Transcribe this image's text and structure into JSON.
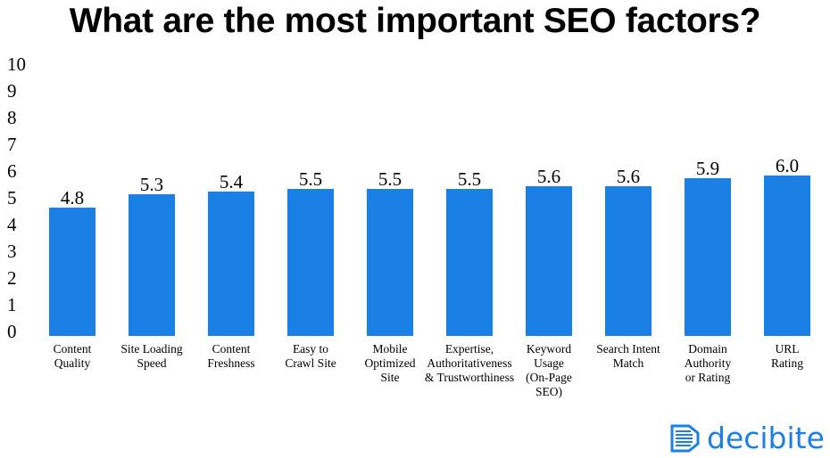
{
  "chart_data": {
    "type": "bar",
    "title": "What are the most important SEO factors?",
    "categories": [
      "Content Quality",
      "Site Loading Speed",
      "Content Freshness",
      "Easy to Crawl Site",
      "Mobile Optimized Site",
      "Expertise, Authoritativeness & Trustworthiness",
      "Keyword Usage (On-Page SEO)",
      "Search Intent Match",
      "Domain Authority or Rating",
      "URL Rating"
    ],
    "category_lines": [
      [
        "Content",
        "Quality"
      ],
      [
        "Site Loading",
        "Speed"
      ],
      [
        "Content",
        "Freshness"
      ],
      [
        "Easy to",
        "Crawl Site"
      ],
      [
        "Mobile",
        "Optimized",
        "Site"
      ],
      [
        "Expertise,",
        "Authoritativeness",
        "& Trustworthiness"
      ],
      [
        "Keyword",
        "Usage",
        "(On-Page",
        "SEO)"
      ],
      [
        "Search Intent",
        "Match"
      ],
      [
        "Domain",
        "Authority",
        "or Rating"
      ],
      [
        "URL",
        "Rating"
      ]
    ],
    "values": [
      4.8,
      5.3,
      5.4,
      5.5,
      5.5,
      5.5,
      5.6,
      5.6,
      5.9,
      6.0
    ],
    "data_labels": [
      "4.8",
      "5.3",
      "5.4",
      "5.5",
      "5.5",
      "5.5",
      "5.6",
      "5.6",
      "5.9",
      "6.0"
    ],
    "xlabel": "",
    "ylabel": "",
    "ylim": [
      0,
      10
    ],
    "yticks": [
      0,
      1,
      2,
      3,
      4,
      5,
      6,
      7,
      8,
      9,
      10
    ],
    "grid": false,
    "bar_color": "#1a80e6"
  },
  "logo": {
    "text": "decibite",
    "color": "#1a80e6"
  }
}
